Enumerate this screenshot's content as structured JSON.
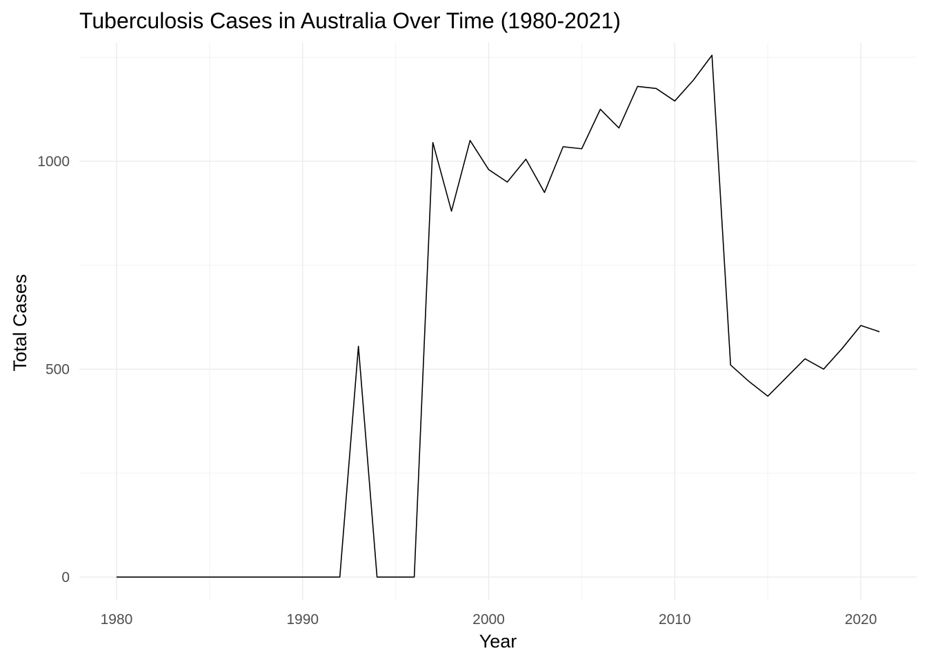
{
  "chart_data": {
    "type": "line",
    "title": "Tuberculosis Cases in Australia Over Time (1980-2021)",
    "xlabel": "Year",
    "ylabel": "Total Cases",
    "xlim": [
      1978,
      2023
    ],
    "ylim": [
      -55,
      1285
    ],
    "x_ticks": [
      1980,
      1990,
      2000,
      2010,
      2020
    ],
    "x_minor_ticks": [
      1985,
      1995,
      2005,
      2015
    ],
    "y_ticks": [
      0,
      500,
      1000
    ],
    "y_minor_ticks": [
      250,
      750,
      1250
    ],
    "grid": true,
    "legend": "none",
    "line_color": "#000000",
    "x": [
      1980,
      1981,
      1982,
      1983,
      1984,
      1985,
      1986,
      1987,
      1988,
      1989,
      1990,
      1991,
      1992,
      1993,
      1994,
      1995,
      1996,
      1997,
      1998,
      1999,
      2000,
      2001,
      2002,
      2003,
      2004,
      2005,
      2006,
      2007,
      2008,
      2009,
      2010,
      2011,
      2012,
      2013,
      2014,
      2015,
      2016,
      2017,
      2018,
      2019,
      2020,
      2021
    ],
    "series": [
      {
        "values": [
          0,
          0,
          0,
          0,
          0,
          0,
          0,
          0,
          0,
          0,
          0,
          0,
          0,
          555,
          0,
          0,
          0,
          1045,
          880,
          1050,
          980,
          950,
          1005,
          925,
          1035,
          1030,
          1125,
          1080,
          1180,
          1175,
          1145,
          1195,
          1255,
          510,
          470,
          435,
          480,
          525,
          500,
          550,
          605,
          590
        ]
      }
    ]
  }
}
